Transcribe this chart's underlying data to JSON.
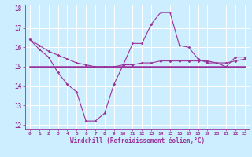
{
  "title": "",
  "xlabel": "Windchill (Refroidissement éolien,°C)",
  "bg_color": "#cceeff",
  "grid_color": "#ffffff",
  "line_color": "#993399",
  "x_hours": [
    0,
    1,
    2,
    3,
    4,
    5,
    6,
    7,
    8,
    9,
    10,
    11,
    12,
    13,
    14,
    15,
    16,
    17,
    18,
    19,
    20,
    21,
    22,
    23
  ],
  "windchill": [
    16.4,
    15.9,
    15.5,
    14.7,
    14.1,
    13.7,
    12.2,
    12.2,
    12.6,
    14.1,
    15.1,
    16.2,
    16.2,
    17.2,
    17.8,
    17.8,
    16.1,
    16.0,
    15.4,
    15.2,
    15.2,
    15.0,
    15.5,
    15.5
  ],
  "temp_line": [
    16.4,
    16.1,
    15.8,
    15.6,
    15.4,
    15.2,
    15.1,
    15.0,
    15.0,
    15.0,
    15.1,
    15.1,
    15.2,
    15.2,
    15.3,
    15.3,
    15.3,
    15.3,
    15.3,
    15.3,
    15.2,
    15.2,
    15.3,
    15.4
  ],
  "flat_line": [
    15.0,
    15.0,
    15.0,
    15.0,
    15.0,
    15.0,
    15.0,
    15.0,
    15.0,
    15.0,
    15.0,
    15.0,
    15.0,
    15.0,
    15.0,
    15.0,
    15.0,
    15.0,
    15.0,
    15.0,
    15.0,
    15.0,
    15.0,
    15.0
  ],
  "ylim_min": 11.8,
  "ylim_max": 18.2,
  "yticks": [
    12,
    13,
    14,
    15,
    16,
    17,
    18
  ],
  "xlim_min": -0.5,
  "xlim_max": 23.5
}
